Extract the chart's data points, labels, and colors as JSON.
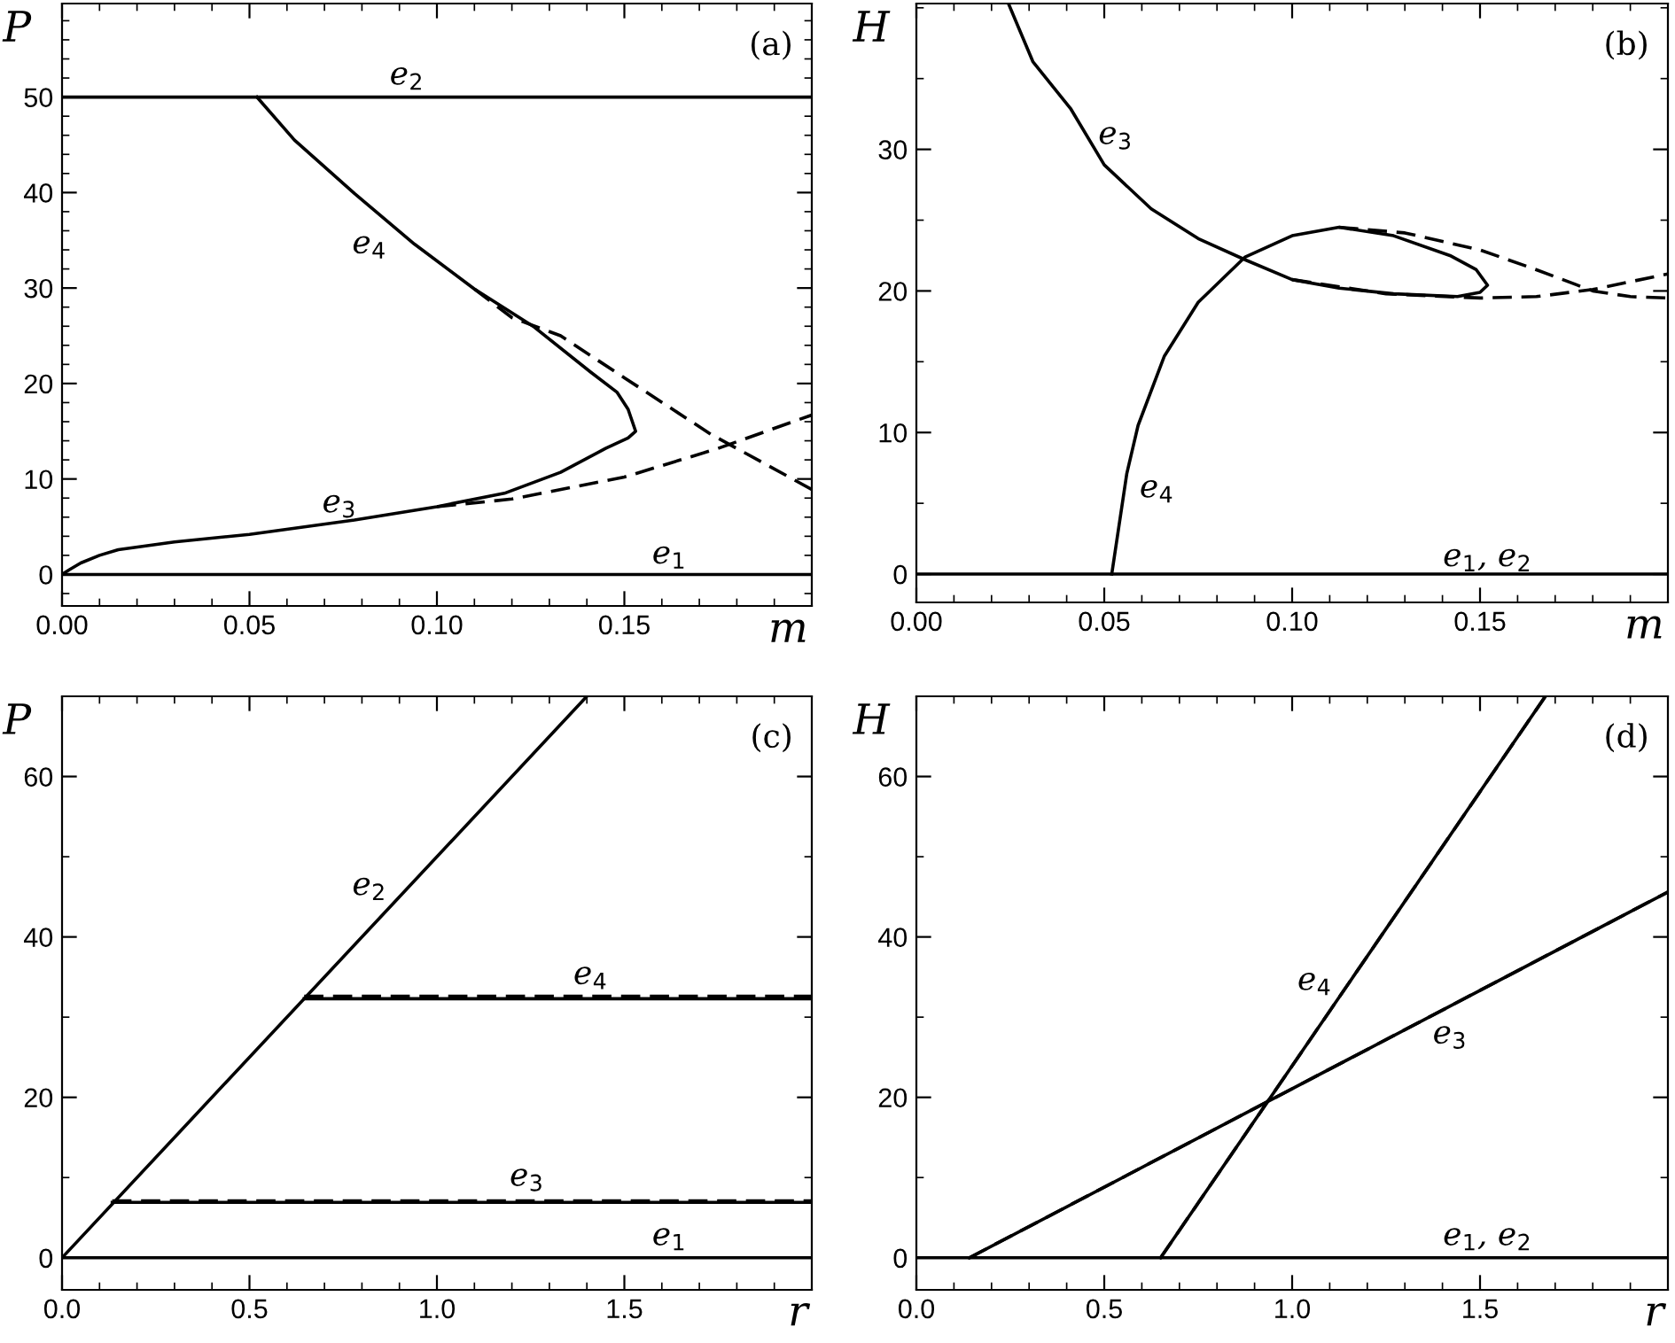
{
  "chart_data": [
    {
      "type": "line",
      "xlabel": "m",
      "ylabel": "P",
      "xlim": [
        0,
        0.2
      ],
      "ylim": [
        -3.3,
        59.8
      ],
      "xticks": [
        {
          "value": 0,
          "label": "0.00"
        },
        0.05,
        {
          "value": 0.1,
          "label": "0.10"
        },
        0.15
      ],
      "yticks": [
        0,
        10,
        20,
        30,
        40,
        50
      ],
      "series": [
        {
          "color": "#000000",
          "line_style": "solid",
          "x": [
            0,
            0.2
          ],
          "values": [
            0,
            0
          ]
        },
        {
          "color": "#000000",
          "line_style": "solid",
          "x": [
            0,
            0.2
          ],
          "values": [
            50,
            50
          ]
        },
        {
          "color": "#000000",
          "line_style": "solid",
          "x": [
            0,
            0.002,
            0.005,
            0.01,
            0.015,
            0.03,
            0.05,
            0.078,
            0.1,
            0.118,
            0.133,
            0.145,
            0.151,
            0.153,
            0.151,
            0.148,
            0.141,
            0.126,
            0.11,
            0.094,
            0.078,
            0.062,
            0.052
          ],
          "values": [
            0,
            0.5,
            1.2,
            2.0,
            2.6,
            3.4,
            4.2,
            5.7,
            7.1,
            8.5,
            10.7,
            13.2,
            14.3,
            15.0,
            17.3,
            19.1,
            21.2,
            25.9,
            29.9,
            34.6,
            39.9,
            45.5,
            50
          ]
        },
        {
          "color": "#000000",
          "line_style": "dashed",
          "x": [
            0.1,
            0.12,
            0.15,
            0.175,
            0.2
          ],
          "values": [
            7.1,
            7.9,
            10.2,
            13.2,
            16.7
          ]
        },
        {
          "color": "#000000",
          "line_style": "dashed",
          "x": [
            0.11,
            0.12,
            0.133,
            0.15,
            0.173,
            0.2
          ],
          "values": [
            29.9,
            26.9,
            25.0,
            20.6,
            14.7,
            8.9
          ]
        }
      ],
      "annotations": [
        "(a)",
        "e$_{2}$",
        "e$_{4}$",
        "e$_{3}$",
        "e$_{1}$"
      ]
    },
    {
      "type": "line",
      "xlabel": "m",
      "ylabel": "H",
      "xlim": [
        0,
        0.2
      ],
      "ylim": [
        -2,
        40.3
      ],
      "xticks": [
        {
          "value": 0,
          "label": "0.00"
        },
        0.05,
        {
          "value": 0.1,
          "label": "0.10"
        },
        0.15
      ],
      "yticks": [
        0,
        10,
        20,
        30
      ],
      "series": [
        {
          "color": "#000000",
          "line_style": "solid",
          "x": [
            0,
            0.2
          ],
          "values": [
            0,
            0
          ]
        },
        {
          "color": "#000000",
          "line_style": "solid",
          "x": [
            0.0245,
            0.031,
            0.041,
            0.05,
            0.0625,
            0.075,
            0.0875,
            0.1,
            0.1125,
            0.127,
            0.144,
            0.15,
            0.152,
            0.149,
            0.142,
            0.127,
            0.1125,
            0.1,
            0.0875,
            0.075,
            0.066,
            0.059,
            0.056,
            0.052
          ],
          "values": [
            40.3,
            36.2,
            32.9,
            28.9,
            25.8,
            23.7,
            22.2,
            20.8,
            20.2,
            19.8,
            19.6,
            19.9,
            20.4,
            21.5,
            22.5,
            23.9,
            24.5,
            23.9,
            22.4,
            19.2,
            15.4,
            10.5,
            7.1,
            0
          ]
        },
        {
          "color": "#000000",
          "line_style": "dashed",
          "x": [
            0.1125,
            0.13,
            0.15,
            0.165,
            0.18,
            0.19,
            0.2
          ],
          "values": [
            24.5,
            24.1,
            22.9,
            21.5,
            20.0,
            19.6,
            19.5
          ]
        },
        {
          "color": "#000000",
          "line_style": "dashed",
          "x": [
            0.1,
            0.125,
            0.15,
            0.165,
            0.18,
            0.2
          ],
          "values": [
            20.8,
            19.8,
            19.5,
            19.6,
            20.1,
            21.2
          ]
        }
      ],
      "annotations": [
        "(b)",
        "e$_{3}$",
        "e$_{4}$",
        "e$_{1}$, e$_{2}$"
      ]
    },
    {
      "type": "line",
      "xlabel": "r",
      "ylabel": "P",
      "xlim": [
        0,
        2.0
      ],
      "ylim": [
        -4,
        70
      ],
      "xticks": [
        {
          "value": 0,
          "label": "0.0"
        },
        0.5,
        {
          "value": 1,
          "label": "1.0"
        },
        1.5
      ],
      "yticks": [
        0,
        20,
        40,
        60
      ],
      "series": [
        {
          "color": "#000000",
          "line_style": "solid",
          "x": [
            0,
            2.0
          ],
          "values": [
            0,
            0
          ]
        },
        {
          "color": "#000000",
          "line_style": "solid",
          "x": [
            0,
            1.4
          ],
          "values": [
            0,
            70
          ]
        },
        {
          "color": "#000000",
          "line_style": "solid",
          "x": [
            0.134,
            2.0
          ],
          "values": [
            6.9,
            6.9
          ]
        },
        {
          "color": "#000000",
          "line_style": "dashed",
          "x": [
            0.134,
            2.0
          ],
          "values": [
            7.1,
            7.1
          ]
        },
        {
          "color": "#000000",
          "line_style": "solid",
          "x": [
            0.646,
            2.0
          ],
          "values": [
            32.3,
            32.3
          ]
        },
        {
          "color": "#000000",
          "line_style": "dashed",
          "x": [
            0.646,
            2.0
          ],
          "values": [
            32.6,
            32.6
          ]
        }
      ],
      "annotations": [
        "(c)",
        "e$_{2}$",
        "e$_{4}$",
        "e$_{3}$",
        "e$_{1}$"
      ]
    },
    {
      "type": "line",
      "xlabel": "r",
      "ylabel": "H",
      "xlim": [
        0,
        2.0
      ],
      "ylim": [
        -4,
        70
      ],
      "xticks": [
        {
          "value": 0,
          "label": "0.0"
        },
        0.5,
        {
          "value": 1,
          "label": "1.0"
        },
        1.5
      ],
      "yticks": [
        0,
        20,
        40,
        60
      ],
      "series": [
        {
          "color": "#000000",
          "line_style": "solid",
          "x": [
            0,
            2.0
          ],
          "values": [
            0,
            0
          ]
        },
        {
          "color": "#000000",
          "line_style": "solid",
          "x": [
            0.141,
            2.0
          ],
          "values": [
            0,
            45.6
          ]
        },
        {
          "color": "#000000",
          "line_style": "dashed",
          "x": [
            0.141,
            2.0
          ],
          "values": [
            0,
            45.6
          ]
        },
        {
          "color": "#000000",
          "line_style": "solid",
          "x": [
            0.65,
            1.674
          ],
          "values": [
            0,
            70
          ]
        },
        {
          "color": "#000000",
          "line_style": "dashed",
          "x": [
            0.65,
            1.674
          ],
          "values": [
            0,
            70
          ]
        }
      ],
      "annotations": [
        "(d)",
        "e$_{4}$",
        "e$_{3}$",
        "e$_{1}$, e$_{2}$"
      ]
    }
  ]
}
